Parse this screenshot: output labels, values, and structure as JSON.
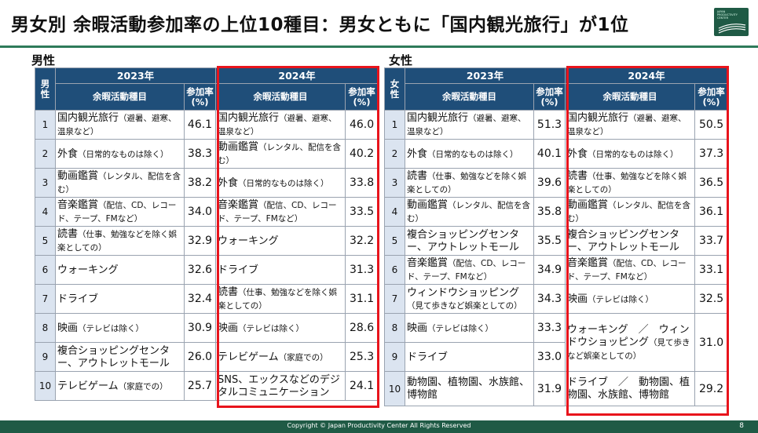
{
  "title": "男女別 余暇活動参加率の上位10種目：男女ともに「国内観光旅行」が1位",
  "logo_text": "JAPAN\nPRODUCTIVITY\nCENTER",
  "male": {
    "section_label": "男性",
    "corner": "男性",
    "year1": "2023年",
    "year2": "2024年",
    "col_activity": "余暇活動種目",
    "col_rate": "参加率(%)",
    "rows": [
      {
        "rank": "1",
        "a1": "国内観光旅行",
        "a1s": "（避暑、避寒、温泉など）",
        "v1": "46.1",
        "a2": "国内観光旅行",
        "a2s": "（避暑、避寒、温泉など）",
        "v2": "46.0"
      },
      {
        "rank": "2",
        "a1": "外食",
        "a1s": "（日常的なものは除く）",
        "v1": "38.3",
        "a2": "動画鑑賞",
        "a2s": "（レンタル、配信を含む）",
        "v2": "40.2"
      },
      {
        "rank": "3",
        "a1": "動画鑑賞",
        "a1s": "（レンタル、配信を含む）",
        "v1": "38.2",
        "a2": "外食",
        "a2s": "（日常的なものは除く）",
        "v2": "33.8"
      },
      {
        "rank": "4",
        "a1": "音楽鑑賞",
        "a1s": "（配信、CD、レコード、テープ、FMなど）",
        "v1": "34.0",
        "a2": "音楽鑑賞",
        "a2s": "（配信、CD、レコード、テープ、FMなど）",
        "v2": "33.5"
      },
      {
        "rank": "5",
        "a1": "読書",
        "a1s": "（仕事、勉強などを除く娯楽としての）",
        "v1": "32.9",
        "a2": "ウォーキング",
        "a2s": "",
        "v2": "32.2"
      },
      {
        "rank": "6",
        "a1": "ウォーキング",
        "a1s": "",
        "v1": "32.6",
        "a2": "ドライブ",
        "a2s": "",
        "v2": "31.3"
      },
      {
        "rank": "7",
        "a1": "ドライブ",
        "a1s": "",
        "v1": "32.4",
        "a2": "読書",
        "a2s": "（仕事、勉強などを除く娯楽としての）",
        "v2": "31.1"
      },
      {
        "rank": "8",
        "a1": "映画",
        "a1s": "（テレビは除く）",
        "v1": "30.9",
        "a2": "映画",
        "a2s": "（テレビは除く）",
        "v2": "28.6"
      },
      {
        "rank": "9",
        "a1": "複合ショッピングセンター、アウトレットモール",
        "a1s": "",
        "v1": "26.0",
        "a2": "テレビゲーム",
        "a2s": "（家庭での）",
        "v2": "25.3"
      },
      {
        "rank": "10",
        "a1": "テレビゲーム",
        "a1s": "（家庭での）",
        "v1": "25.7",
        "a2": "SNS、エックスなどのデジタルコミュニケーション",
        "a2s": "",
        "v2": "24.1"
      }
    ]
  },
  "female": {
    "section_label": "女性",
    "corner": "女性",
    "year1": "2023年",
    "year2": "2024年",
    "col_activity": "余暇活動種目",
    "col_rate": "参加率(%)",
    "rows": [
      {
        "rank": "1",
        "a1": "国内観光旅行",
        "a1s": "（避暑、避寒、温泉など）",
        "v1": "51.3",
        "a2": "国内観光旅行",
        "a2s": "（避暑、避寒、温泉など）",
        "v2": "50.5"
      },
      {
        "rank": "2",
        "a1": "外食",
        "a1s": "（日常的なものは除く）",
        "v1": "40.1",
        "a2": "外食",
        "a2s": "（日常的なものは除く）",
        "v2": "37.3"
      },
      {
        "rank": "3",
        "a1": "読書",
        "a1s": "（仕事、勉強などを除く娯楽としての）",
        "v1": "39.6",
        "a2": "読書",
        "a2s": "（仕事、勉強などを除く娯楽としての）",
        "v2": "36.5"
      },
      {
        "rank": "4",
        "a1": "動画鑑賞",
        "a1s": "（レンタル、配信を含む）",
        "v1": "35.8",
        "a2": "動画鑑賞",
        "a2s": "（レンタル、配信を含む）",
        "v2": "36.1"
      },
      {
        "rank": "5",
        "a1": "複合ショッピングセンター、アウトレットモール",
        "a1s": "",
        "v1": "35.5",
        "a2": "複合ショッピングセンター、アウトレットモール",
        "a2s": "",
        "v2": "33.7"
      },
      {
        "rank": "6",
        "a1": "音楽鑑賞",
        "a1s": "（配信、CD、レコード、テープ、FMなど）",
        "v1": "34.9",
        "a2": "音楽鑑賞",
        "a2s": "（配信、CD、レコード、テープ、FMなど）",
        "v2": "33.1"
      },
      {
        "rank": "7",
        "a1": "ウィンドウショッピング",
        "a1s": "（見て歩きなど娯楽としての）",
        "v1": "34.3",
        "a2": "映画",
        "a2s": "（テレビは除く）",
        "v2": "32.5"
      },
      {
        "rank": "8",
        "a1": "映画",
        "a1s": "（テレビは除く）",
        "v1": "33.3",
        "a2": "ウォーキング　／　ウィンドウショッピング",
        "a2s": "（見て歩きなど娯楽としての）",
        "v2": "31.0"
      },
      {
        "rank": "9",
        "a1": "ドライブ",
        "a1s": "",
        "v1": "33.0",
        "a2": "",
        "a2s": "",
        "v2": ""
      },
      {
        "rank": "10",
        "a1": "動物園、植物園、水族館、博物館",
        "a1s": "",
        "v1": "31.9",
        "a2": "ドライブ　／　動物園、植物園、水族館、博物館",
        "a2s": "",
        "v2": "29.2"
      }
    ]
  },
  "footer": {
    "copyright": "Copyright © Japan Productivity Center All Rights Reserved",
    "page_number": "8"
  }
}
